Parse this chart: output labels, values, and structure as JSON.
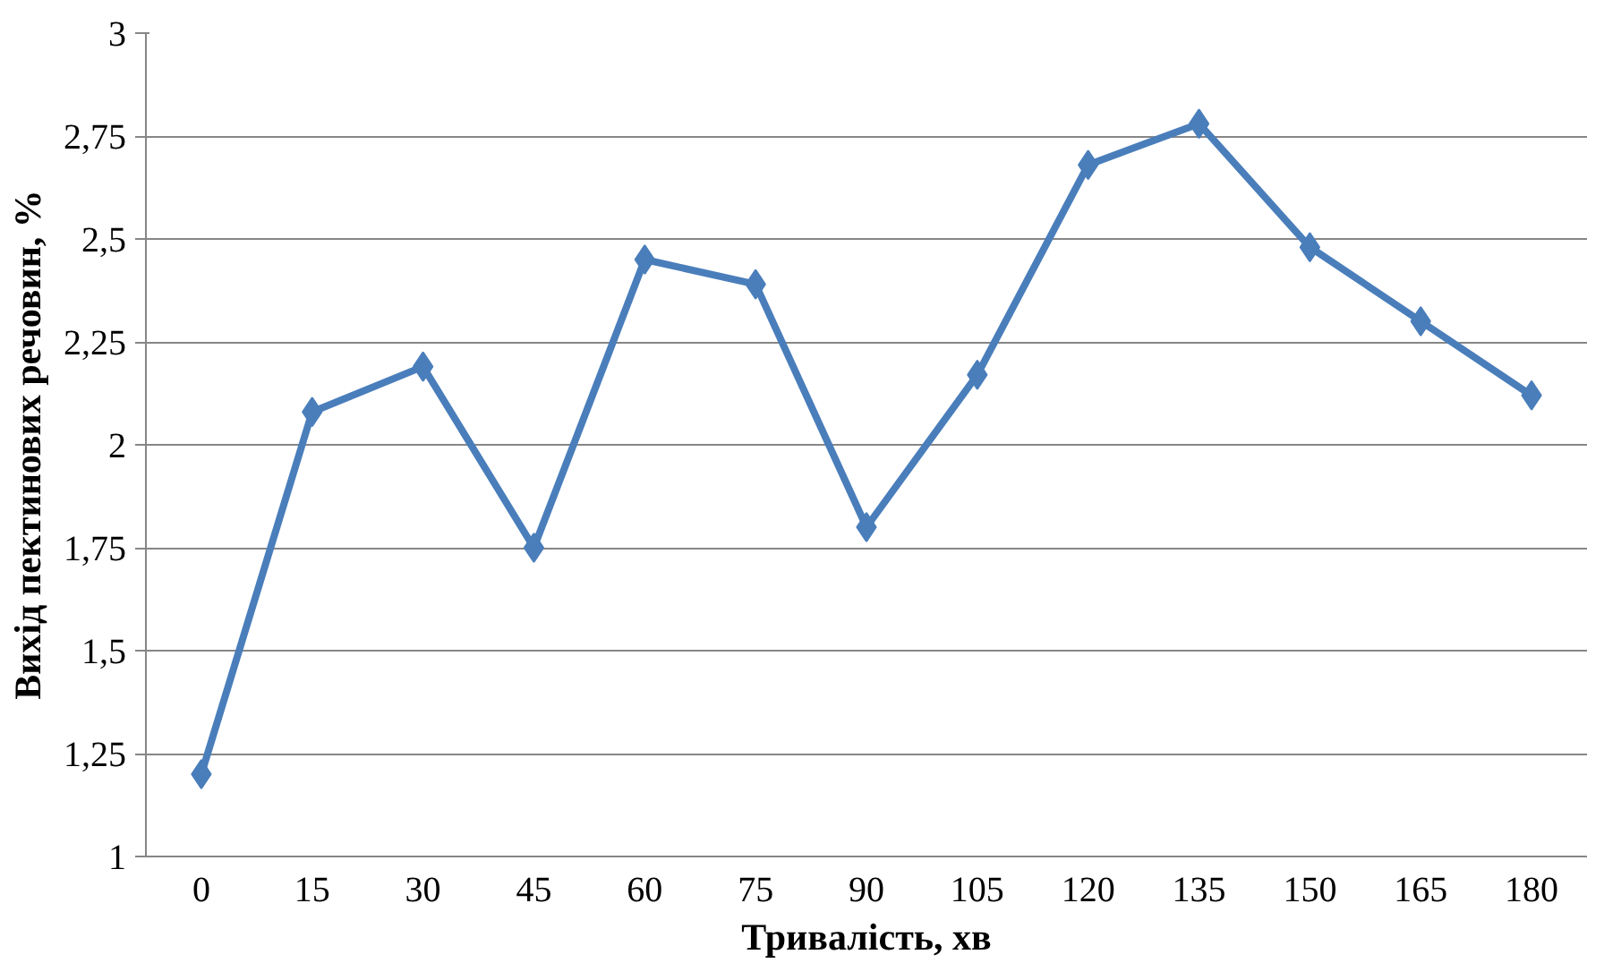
{
  "chart_data": {
    "type": "line",
    "xlabel": "Тривалість, хв",
    "ylabel": "Вихід пектинових речовин, %",
    "categories": [
      "0",
      "15",
      "30",
      "45",
      "60",
      "75",
      "90",
      "105",
      "120",
      "135",
      "150",
      "165",
      "180"
    ],
    "series": [
      {
        "color": "#4a7ebb",
        "values": [
          1.2,
          2.08,
          2.19,
          1.75,
          2.45,
          2.39,
          1.8,
          2.17,
          2.68,
          2.78,
          2.48,
          2.3,
          2.12
        ]
      }
    ],
    "ylim": [
      1,
      3
    ],
    "yticks": [
      1,
      {
        "value": 1.25,
        "label": "1,25"
      },
      {
        "value": 1.5,
        "label": "1,5"
      },
      {
        "value": 1.75,
        "label": "1,75"
      },
      2,
      {
        "value": 2.25,
        "label": "2,25"
      },
      {
        "value": 2.5,
        "label": "2,5"
      },
      {
        "value": 2.75,
        "label": "2,75"
      },
      3
    ],
    "grid": "y",
    "marker": "diamond",
    "line_style": "solid"
  }
}
